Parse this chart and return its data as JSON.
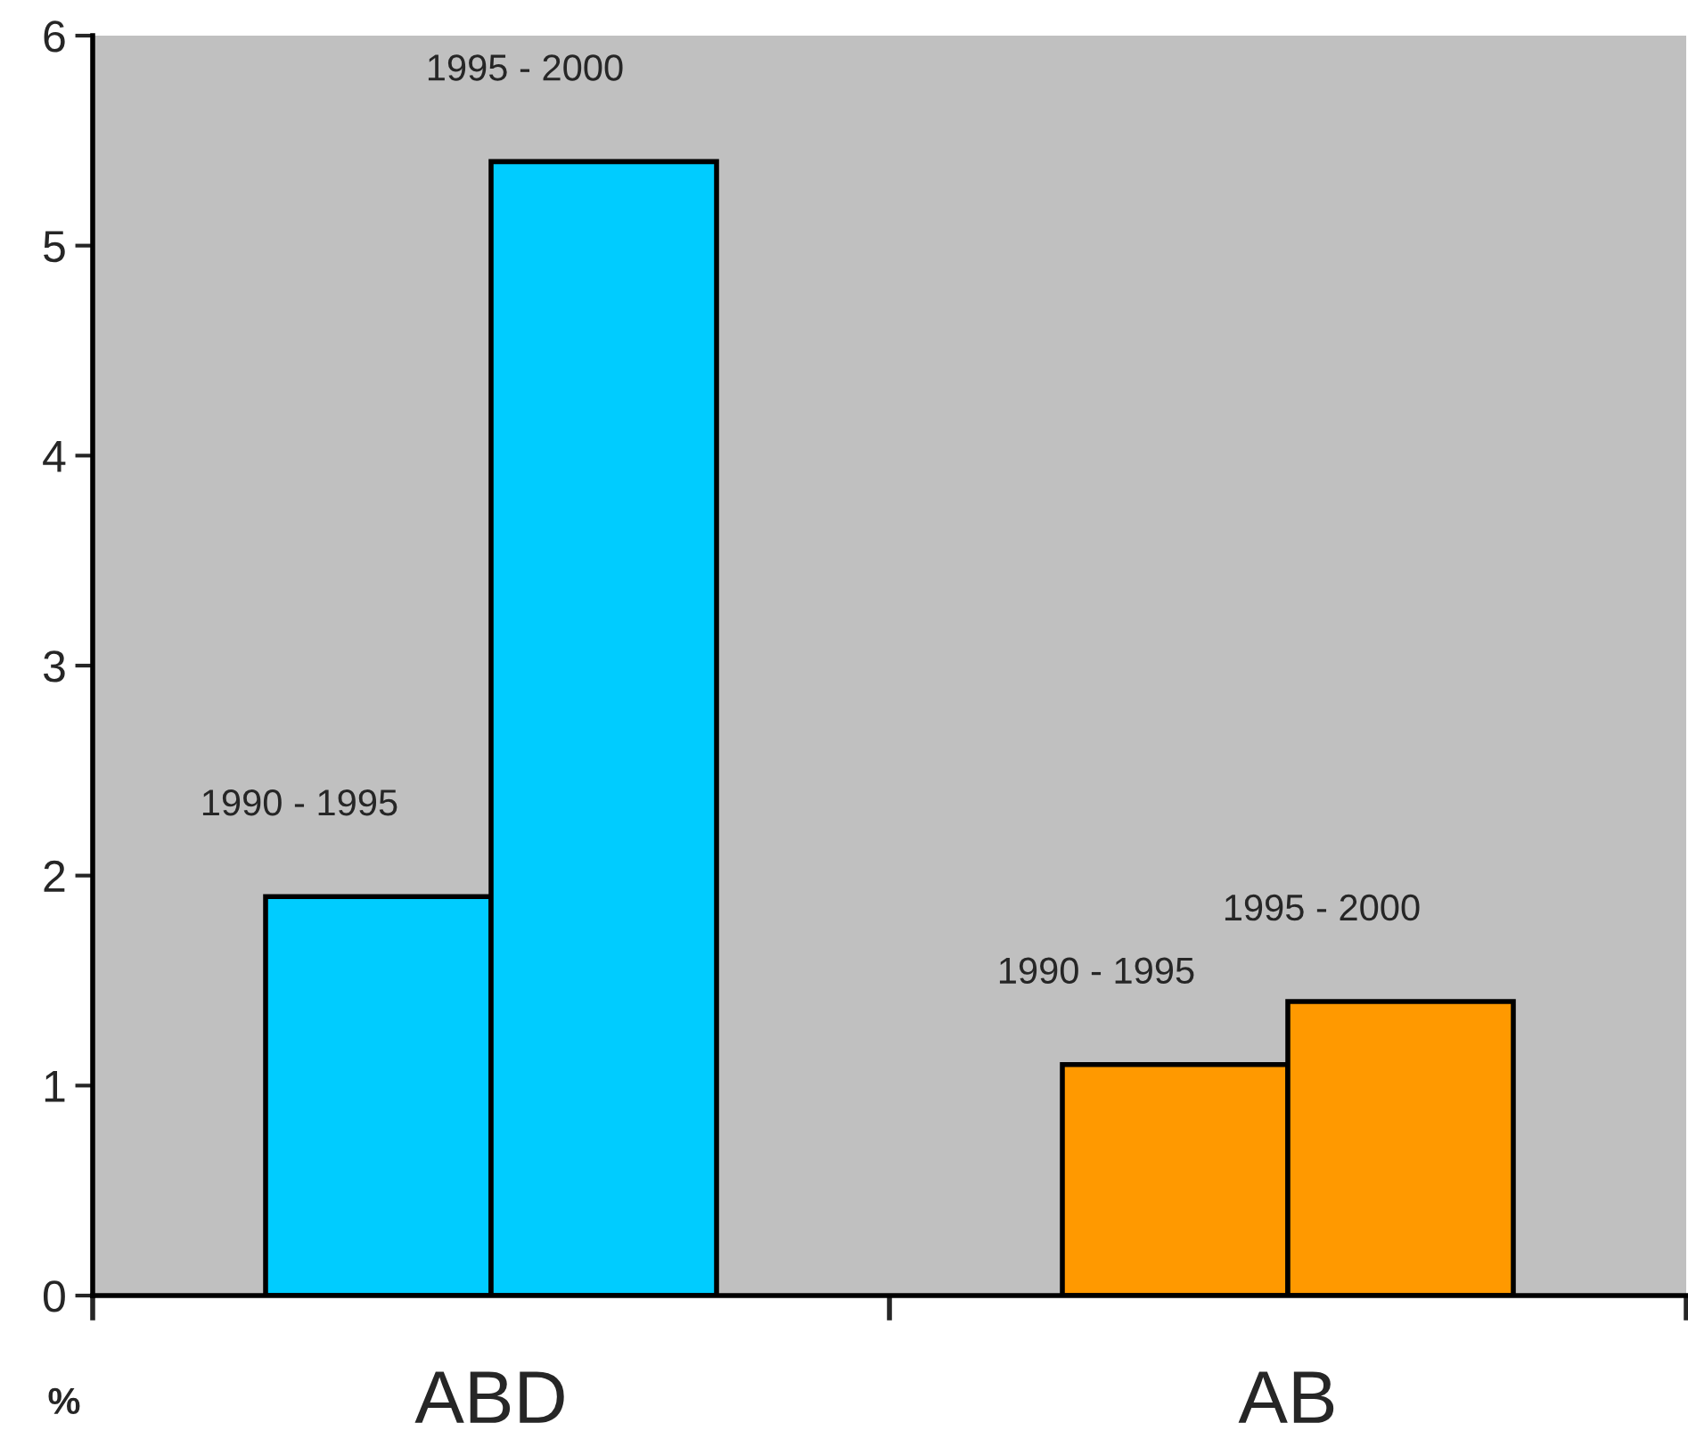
{
  "chart_data": {
    "type": "bar",
    "categories": [
      "ABD",
      "AB"
    ],
    "ylabel": "%",
    "series": [
      {
        "name": "1990 - 1995",
        "colors": [
          "#00ccff",
          "#ff9900"
        ],
        "values": [
          1.9,
          1.1
        ]
      },
      {
        "name": "1995 - 2000",
        "colors": [
          "#00ccff",
          "#ff9900"
        ],
        "values": [
          5.4,
          1.4
        ]
      }
    ],
    "ylim": [
      0,
      6
    ],
    "yticks": [
      0,
      1,
      2,
      3,
      4,
      5,
      6
    ],
    "grid": false,
    "legend": false
  }
}
